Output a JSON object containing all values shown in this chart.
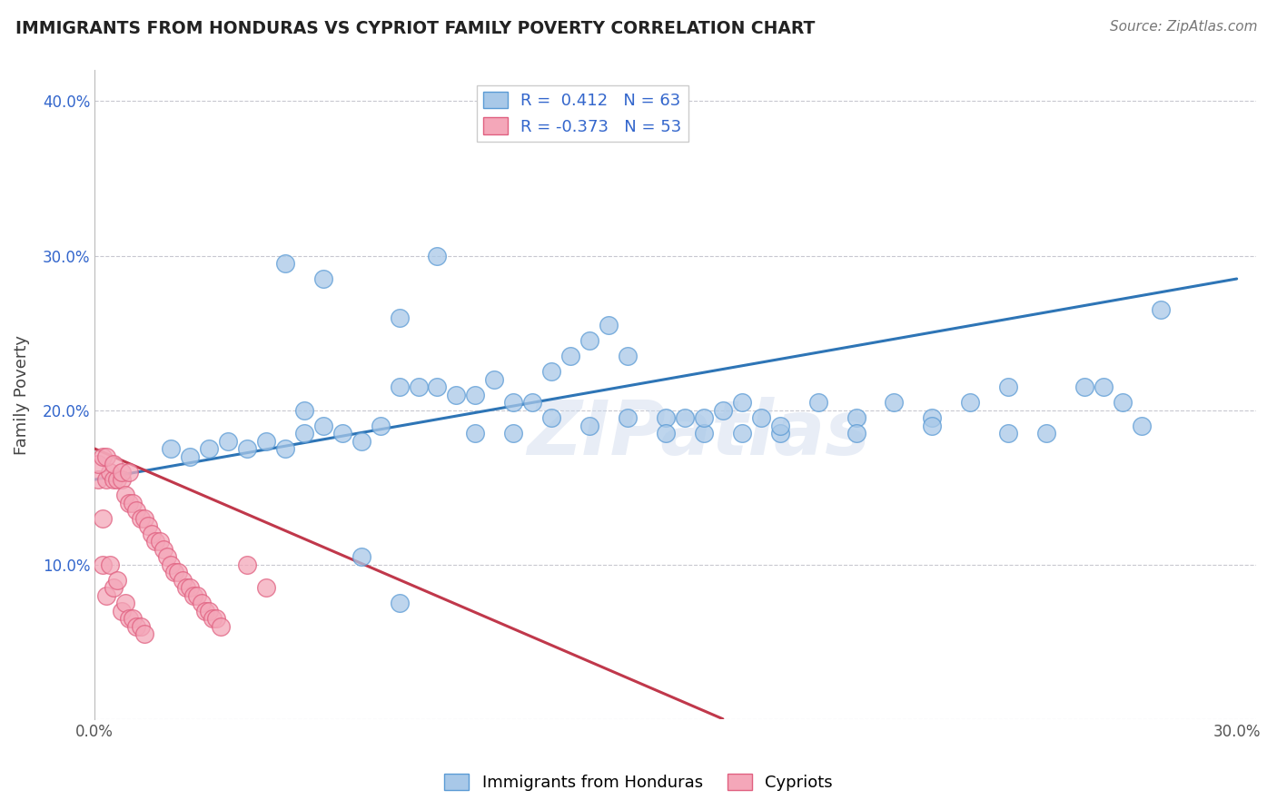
{
  "title": "IMMIGRANTS FROM HONDURAS VS CYPRIOT FAMILY POVERTY CORRELATION CHART",
  "source": "Source: ZipAtlas.com",
  "ylabel": "Family Poverty",
  "legend_label1": "Immigrants from Honduras",
  "legend_label2": "Cypriots",
  "R1": 0.412,
  "N1": 63,
  "R2": -0.373,
  "N2": 53,
  "xlim": [
    0.0,
    0.3
  ],
  "ylim": [
    0.0,
    0.42
  ],
  "color_blue": "#a8c8e8",
  "color_blue_edge": "#5b9bd5",
  "color_blue_line": "#2e75b6",
  "color_pink": "#f4a7b9",
  "color_pink_edge": "#e06080",
  "color_pink_line": "#c0384b",
  "color_text": "#3366cc",
  "watermark": "ZIPatlas",
  "blue_x": [
    0.02,
    0.025,
    0.03,
    0.035,
    0.04,
    0.045,
    0.05,
    0.055,
    0.055,
    0.06,
    0.065,
    0.07,
    0.075,
    0.08,
    0.085,
    0.09,
    0.095,
    0.1,
    0.105,
    0.11,
    0.115,
    0.12,
    0.125,
    0.13,
    0.135,
    0.14,
    0.15,
    0.155,
    0.16,
    0.165,
    0.17,
    0.175,
    0.18,
    0.19,
    0.2,
    0.21,
    0.22,
    0.23,
    0.24,
    0.25,
    0.26,
    0.27,
    0.28,
    0.05,
    0.06,
    0.08,
    0.09,
    0.1,
    0.11,
    0.12,
    0.13,
    0.14,
    0.15,
    0.16,
    0.17,
    0.18,
    0.2,
    0.22,
    0.24,
    0.265,
    0.275,
    0.07,
    0.08
  ],
  "blue_y": [
    0.175,
    0.17,
    0.175,
    0.18,
    0.175,
    0.18,
    0.175,
    0.2,
    0.185,
    0.19,
    0.185,
    0.18,
    0.19,
    0.215,
    0.215,
    0.215,
    0.21,
    0.21,
    0.22,
    0.205,
    0.205,
    0.225,
    0.235,
    0.245,
    0.255,
    0.235,
    0.195,
    0.195,
    0.185,
    0.2,
    0.205,
    0.195,
    0.185,
    0.205,
    0.195,
    0.205,
    0.195,
    0.205,
    0.215,
    0.185,
    0.215,
    0.205,
    0.265,
    0.295,
    0.285,
    0.26,
    0.3,
    0.185,
    0.185,
    0.195,
    0.19,
    0.195,
    0.185,
    0.195,
    0.185,
    0.19,
    0.185,
    0.19,
    0.185,
    0.215,
    0.19,
    0.105,
    0.075
  ],
  "pink_x": [
    0.001,
    0.002,
    0.002,
    0.003,
    0.003,
    0.004,
    0.004,
    0.005,
    0.005,
    0.006,
    0.006,
    0.007,
    0.007,
    0.008,
    0.008,
    0.009,
    0.009,
    0.01,
    0.01,
    0.011,
    0.011,
    0.012,
    0.012,
    0.013,
    0.013,
    0.014,
    0.015,
    0.016,
    0.017,
    0.018,
    0.019,
    0.02,
    0.021,
    0.022,
    0.023,
    0.024,
    0.025,
    0.026,
    0.027,
    0.028,
    0.029,
    0.03,
    0.031,
    0.032,
    0.033,
    0.04,
    0.045,
    0.001,
    0.002,
    0.003,
    0.005,
    0.007,
    0.009
  ],
  "pink_y": [
    0.155,
    0.13,
    0.1,
    0.08,
    0.155,
    0.16,
    0.1,
    0.155,
    0.085,
    0.155,
    0.09,
    0.155,
    0.07,
    0.145,
    0.075,
    0.14,
    0.065,
    0.14,
    0.065,
    0.135,
    0.06,
    0.13,
    0.06,
    0.13,
    0.055,
    0.125,
    0.12,
    0.115,
    0.115,
    0.11,
    0.105,
    0.1,
    0.095,
    0.095,
    0.09,
    0.085,
    0.085,
    0.08,
    0.08,
    0.075,
    0.07,
    0.07,
    0.065,
    0.065,
    0.06,
    0.1,
    0.085,
    0.165,
    0.17,
    0.17,
    0.165,
    0.16,
    0.16
  ],
  "blue_line_x": [
    0.0,
    0.3
  ],
  "blue_line_y": [
    0.155,
    0.285
  ],
  "pink_line_x": [
    0.0,
    0.165
  ],
  "pink_line_y": [
    0.175,
    0.0
  ],
  "grid_color": "#c8c8d0",
  "bg_color": "#ffffff"
}
